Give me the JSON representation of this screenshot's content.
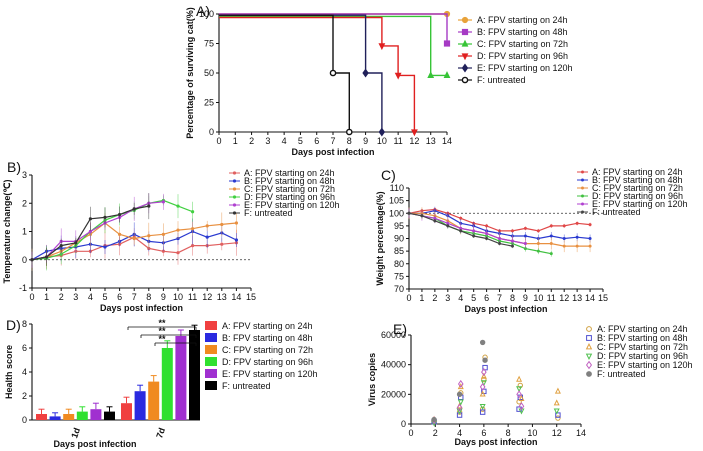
{
  "chart_data": [
    {
      "panel": "A)",
      "type": "line",
      "title": "",
      "xlabel": "Days post infection",
      "ylabel": "Percentage of surviving cat(%)",
      "xlim": [
        0,
        14
      ],
      "ylim": [
        0,
        100
      ],
      "xticks": [
        "0",
        "1",
        "2",
        "3",
        "4",
        "5",
        "6",
        "7",
        "8",
        "9",
        "10",
        "11",
        "12",
        "13",
        "14"
      ],
      "yticks": [
        "0",
        "25",
        "50",
        "75",
        "100"
      ],
      "series": [
        {
          "name": "A: FPV starting on 24h",
          "color": "#e8a23a",
          "marker": "circle",
          "x": [
            0,
            14
          ],
          "y": [
            100,
            100
          ]
        },
        {
          "name": "B: FPV starting on 48h",
          "color": "#a63bc4",
          "marker": "square",
          "x": [
            0,
            14,
            14
          ],
          "y": [
            100,
            100,
            75
          ]
        },
        {
          "name": "C: FPV starting on 72h",
          "color": "#37c437",
          "marker": "triangle",
          "x": [
            0,
            13,
            13,
            14
          ],
          "y": [
            98,
            98,
            48,
            48
          ]
        },
        {
          "name": "D: FPV starting on 96h",
          "color": "#e02020",
          "marker": "triangle-down",
          "x": [
            0,
            10,
            10,
            11,
            11,
            12,
            12
          ],
          "y": [
            97,
            97,
            73,
            73,
            48,
            48,
            0
          ]
        },
        {
          "name": "E: FPV starting on 120h",
          "color": "#20205a",
          "marker": "diamond",
          "x": [
            0,
            9,
            9,
            10,
            10
          ],
          "y": [
            99,
            99,
            50,
            50,
            0
          ]
        },
        {
          "name": "F: untreated",
          "color": "#111111",
          "marker": "open-circle",
          "x": [
            0,
            7,
            7,
            8,
            8
          ],
          "y": [
            99,
            99,
            50,
            50,
            0
          ]
        }
      ]
    },
    {
      "panel": "B)",
      "type": "line",
      "xlabel": "Days post infection",
      "ylabel": "Temperature change(℃)",
      "xlim": [
        0,
        15
      ],
      "ylim": [
        -1,
        3
      ],
      "xticks": [
        "0",
        "1",
        "2",
        "3",
        "4",
        "5",
        "6",
        "7",
        "8",
        "9",
        "10",
        "11",
        "12",
        "13",
        "14",
        "15"
      ],
      "yticks": [
        "-1",
        "0",
        "1",
        "2",
        "3"
      ],
      "baseline": 0,
      "series": [
        {
          "name": "A: FPV starting on 24h",
          "color": "#e06060",
          "x": [
            0,
            1,
            2,
            3,
            4,
            5,
            6,
            7,
            8,
            9,
            10,
            11,
            12,
            13,
            14
          ],
          "y": [
            0,
            0.1,
            0.15,
            0.3,
            0.3,
            0.5,
            0.55,
            0.8,
            0.4,
            0.3,
            0.25,
            0.5,
            0.5,
            0.55,
            0.6
          ]
        },
        {
          "name": "B: FPV starting on 48h",
          "color": "#2a3ad0",
          "x": [
            0,
            1,
            2,
            3,
            4,
            5,
            6,
            7,
            8,
            9,
            10,
            11,
            12,
            13,
            14
          ],
          "y": [
            0,
            0.3,
            0.4,
            0.45,
            0.55,
            0.45,
            0.65,
            0.9,
            0.65,
            0.6,
            0.75,
            1.0,
            0.8,
            0.95,
            0.7
          ]
        },
        {
          "name": "C: FPV starting on 72h",
          "color": "#e89040",
          "x": [
            0,
            1,
            2,
            3,
            4,
            5,
            6,
            7,
            8,
            9,
            10,
            11,
            12,
            13,
            14
          ],
          "y": [
            0,
            0.1,
            0.3,
            0.6,
            0.9,
            1.3,
            0.9,
            0.75,
            0.85,
            0.9,
            1.05,
            1.1,
            1.2,
            1.25,
            1.3
          ]
        },
        {
          "name": "D: FPV starting on 96h",
          "color": "#40d040",
          "x": [
            0,
            1,
            2,
            3,
            4,
            5,
            6,
            7,
            8,
            9,
            10,
            11
          ],
          "y": [
            0,
            0.05,
            0.2,
            0.5,
            1.0,
            1.4,
            1.6,
            1.75,
            2.0,
            2.1,
            1.9,
            1.7
          ]
        },
        {
          "name": "E: FPV starting on 120h",
          "color": "#b040d0",
          "x": [
            0,
            1,
            2,
            3,
            4,
            5,
            6,
            7,
            8,
            9
          ],
          "y": [
            0,
            0.1,
            0.65,
            0.65,
            1.0,
            1.3,
            1.5,
            1.8,
            2.0,
            2.05
          ]
        },
        {
          "name": "F: untreated",
          "color": "#333333",
          "x": [
            0,
            1,
            2,
            3,
            4,
            5,
            6,
            7,
            8
          ],
          "y": [
            0,
            0.1,
            0.5,
            0.6,
            1.45,
            1.5,
            1.6,
            1.8,
            1.9
          ]
        }
      ]
    },
    {
      "panel": "C)",
      "type": "line",
      "xlabel": "Days post infection",
      "ylabel": "Weight percentage(%)",
      "xlim": [
        0,
        15
      ],
      "ylim": [
        70,
        110
      ],
      "xticks": [
        "0",
        "1",
        "2",
        "3",
        "4",
        "5",
        "6",
        "7",
        "8",
        "9",
        "10",
        "11",
        "12",
        "13",
        "14",
        "15"
      ],
      "yticks": [
        "70",
        "75",
        "80",
        "85",
        "90",
        "95",
        "100",
        "105",
        "110"
      ],
      "baseline": 100,
      "series": [
        {
          "name": "A: FPV starting on 24h",
          "color": "#e04848",
          "x": [
            0,
            1,
            2,
            3,
            4,
            5,
            6,
            7,
            8,
            9,
            10,
            11,
            12,
            13,
            14
          ],
          "y": [
            100,
            101,
            101.5,
            100,
            98,
            96,
            95,
            93,
            93,
            94,
            93,
            95,
            95,
            96,
            95.5
          ]
        },
        {
          "name": "B: FPV starting on 48h",
          "color": "#2a3ad0",
          "x": [
            0,
            1,
            2,
            3,
            4,
            5,
            6,
            7,
            8,
            9,
            10,
            11,
            12,
            13,
            14
          ],
          "y": [
            100,
            100,
            101,
            99,
            96,
            95,
            93,
            92,
            91,
            91,
            90,
            91,
            90,
            90.5,
            90
          ]
        },
        {
          "name": "C: FPV starting on 72h",
          "color": "#e89040",
          "x": [
            0,
            1,
            2,
            3,
            4,
            5,
            6,
            7,
            8,
            9,
            10,
            11,
            12,
            13,
            14
          ],
          "y": [
            100,
            100,
            99,
            97,
            94,
            93,
            92,
            90,
            89,
            88,
            88,
            88,
            87,
            87,
            87
          ]
        },
        {
          "name": "D: FPV starting on 96h",
          "color": "#40c040",
          "x": [
            0,
            1,
            2,
            3,
            4,
            5,
            6,
            7,
            8,
            9,
            10,
            11
          ],
          "y": [
            100,
            99,
            98,
            95,
            93,
            92,
            91,
            89,
            88,
            86,
            85,
            84
          ]
        },
        {
          "name": "E: FPV starting on 120h",
          "color": "#b040d0",
          "x": [
            0,
            1,
            2,
            3,
            4,
            5,
            6,
            7,
            8,
            9
          ],
          "y": [
            100,
            99,
            98,
            96,
            94,
            93,
            92,
            90,
            89,
            88
          ]
        },
        {
          "name": "F: untreated",
          "color": "#444444",
          "x": [
            0,
            1,
            2,
            3,
            4,
            5,
            6,
            7,
            8
          ],
          "y": [
            100,
            99,
            97,
            95,
            93,
            91,
            90,
            88,
            87
          ]
        }
      ]
    },
    {
      "panel": "D)",
      "type": "bar",
      "xlabel": "Days post infection",
      "ylabel": "Health score",
      "ylim": [
        0,
        8
      ],
      "yticks": [
        "0",
        "2",
        "4",
        "6",
        "8"
      ],
      "categories": [
        "1d",
        "7d"
      ],
      "significance": [
        "**",
        "**",
        "**"
      ],
      "series": [
        {
          "name": "A: FPV starting on 24h",
          "color": "#f04040",
          "values": [
            0.5,
            1.4
          ],
          "errors": [
            0.4,
            0.5
          ]
        },
        {
          "name": "B: FPV starting on 48h",
          "color": "#2a2ae0",
          "values": [
            0.3,
            2.4
          ],
          "errors": [
            0.3,
            0.5
          ]
        },
        {
          "name": "C: FPV starting on 72h",
          "color": "#f08a20",
          "values": [
            0.5,
            3.2
          ],
          "errors": [
            0.4,
            0.5
          ]
        },
        {
          "name": "D: FPV starting on 96h",
          "color": "#30e030",
          "values": [
            0.7,
            6.0
          ],
          "errors": [
            0.4,
            0.6
          ]
        },
        {
          "name": "E: FPV starting on 120h",
          "color": "#a030d0",
          "values": [
            0.9,
            7.0
          ],
          "errors": [
            0.5,
            0.5
          ]
        },
        {
          "name": "F: untreated",
          "color": "#000000",
          "values": [
            0.7,
            7.5
          ],
          "errors": [
            0.4,
            0.4
          ]
        }
      ]
    },
    {
      "panel": "E)",
      "type": "scatter",
      "xlabel": "Days post infection",
      "ylabel": "Virus copies",
      "xlim": [
        0,
        14
      ],
      "ylim": [
        0,
        60000
      ],
      "xticks": [
        "0",
        "2",
        "4",
        "6",
        "8",
        "10",
        "12",
        "14"
      ],
      "yticks": [
        "0",
        "20000",
        "40000",
        "60000"
      ],
      "series": [
        {
          "name": "A: FPV starting on 24h",
          "color": "#d0a040",
          "marker": "circle",
          "x": [
            2,
            4,
            4,
            6,
            6,
            6,
            9,
            9,
            12
          ],
          "y": [
            2000,
            8000,
            21000,
            10000,
            30000,
            45000,
            15000,
            26000,
            4000
          ]
        },
        {
          "name": "B: FPV starting on 48h",
          "color": "#5050d0",
          "marker": "square",
          "x": [
            2,
            4,
            4,
            6,
            6,
            6,
            9,
            9,
            12
          ],
          "y": [
            1500,
            6000,
            18000,
            8000,
            22000,
            38000,
            10000,
            18000,
            6000
          ]
        },
        {
          "name": "C: FPV starting on 72h",
          "color": "#e0a040",
          "marker": "triangle",
          "x": [
            2,
            4,
            4,
            6,
            6,
            9,
            9,
            12,
            12
          ],
          "y": [
            3000,
            12000,
            25000,
            20000,
            32000,
            17000,
            30000,
            14000,
            22000
          ]
        },
        {
          "name": "D: FPV starting on 96h",
          "color": "#50c050",
          "marker": "triangle-down",
          "x": [
            2,
            4,
            4,
            6,
            6,
            9,
            9,
            12
          ],
          "y": [
            1000,
            9000,
            15000,
            12000,
            28000,
            9000,
            24000,
            9000
          ]
        },
        {
          "name": "E: FPV starting on 120h",
          "color": "#c060c0",
          "marker": "diamond",
          "x": [
            2,
            4,
            4,
            6,
            6,
            9,
            9
          ],
          "y": [
            2500,
            11000,
            27000,
            25000,
            35000,
            12000,
            20000
          ]
        },
        {
          "name": "F: untreated",
          "color": "#808080",
          "marker": "filled-circle",
          "x": [
            2,
            4,
            6,
            6
          ],
          "y": [
            3000,
            20000,
            43000,
            55000
          ]
        }
      ]
    }
  ],
  "panel_a_legend": [
    "A: FPV starting on 24h",
    "B: FPV starting on 48h",
    "C: FPV starting on 72h",
    "D: FPV starting on 96h",
    "E: FPV starting on 120h",
    "F: untreated"
  ]
}
